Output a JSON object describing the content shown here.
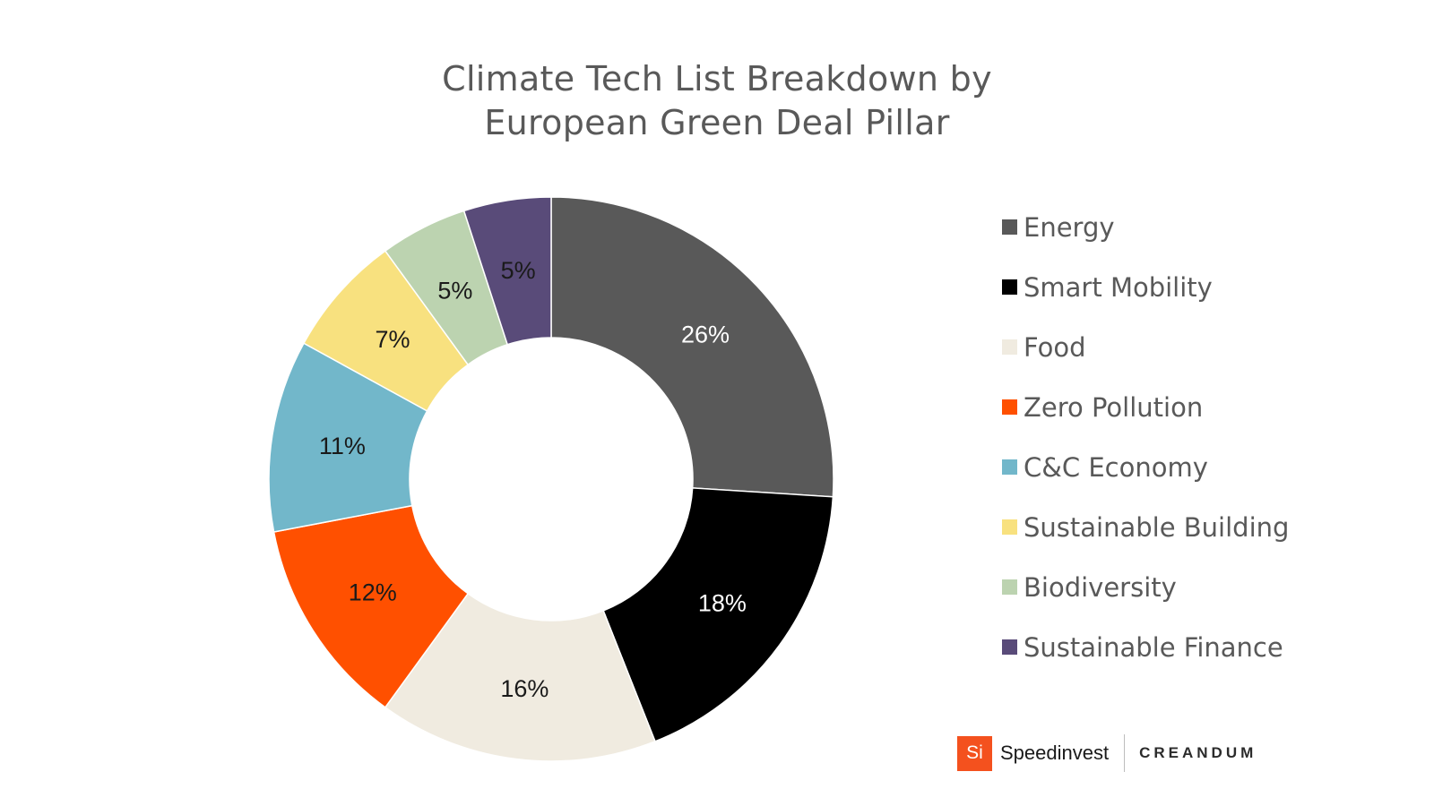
{
  "chart_data": {
    "type": "pie",
    "variant": "donut",
    "title_lines": [
      "Climate Tech List Breakdown by",
      "European Green Deal Pillar"
    ],
    "categories": [
      "Energy",
      "Smart Mobility",
      "Food",
      "Zero Pollution",
      "C&C Economy",
      "Sustainable Building",
      "Biodiversity",
      "Sustainable Finance"
    ],
    "values": [
      26,
      18,
      16,
      12,
      11,
      7,
      5,
      5
    ],
    "data_labels": [
      "26%",
      "18%",
      "16%",
      "12%",
      "11%",
      "7%",
      "5%",
      "5%"
    ],
    "colors": [
      "#595959",
      "#000000",
      "#f0ebe0",
      "#ff5000",
      "#72b7ca",
      "#f8e17f",
      "#bcd3b0",
      "#594b79"
    ],
    "label_colors": [
      "#ffffff",
      "#ffffff",
      "#1a1a1a",
      "#1a1a1a",
      "#1a1a1a",
      "#1a1a1a",
      "#1a1a1a",
      "#1a1a1a"
    ],
    "legend_position": "right",
    "start_angle_deg": 0,
    "direction": "clockwise"
  },
  "logos": {
    "speedinvest_badge": "Si",
    "speedinvest_name": "Speedinvest",
    "creandum_name": "CREANDUM",
    "speedinvest_color": "#f4511e"
  }
}
